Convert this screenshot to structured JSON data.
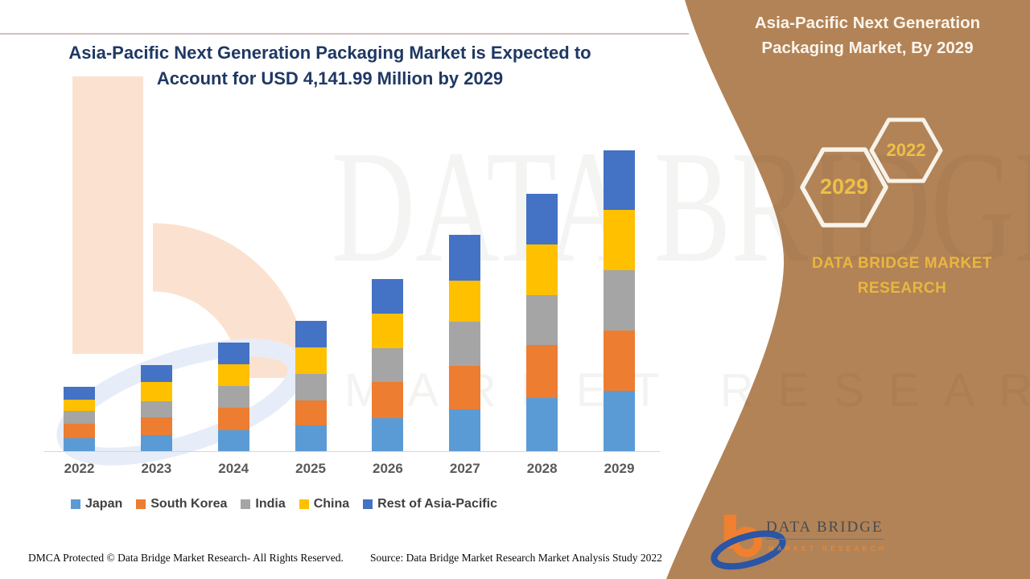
{
  "header": {
    "title_line1": "Asia-Pacific Next Generation Packaging Market is Expected to",
    "title_line2": "Account for USD 4,141.99 Million by 2029",
    "title_color": "#1f3864"
  },
  "sidebar": {
    "bg_color": "#b28357",
    "title": "Asia-Pacific Next Generation Packaging Market, By 2029",
    "hexagons": [
      {
        "label": "2029"
      },
      {
        "label": "2022"
      }
    ],
    "brand_text": "DATA BRIDGE MARKET RESEARCH",
    "accent_color": "#e9b640"
  },
  "watermark": {
    "name": "DATA BRIDGE",
    "tagline": "MARKET RESEARCH"
  },
  "chart_data": {
    "type": "bar",
    "stacked": true,
    "title": "Asia-Pacific Next Generation Packaging Market is Expected to Account for USD 4,141.99 Million by 2029",
    "unit": "USD Million",
    "categories": [
      "2022",
      "2023",
      "2024",
      "2025",
      "2026",
      "2027",
      "2028",
      "2029"
    ],
    "series": [
      {
        "name": "Japan",
        "color": "#5B9BD5",
        "values": [
          177,
          221,
          288,
          354,
          454,
          576,
          731,
          830
        ]
      },
      {
        "name": "South Korea",
        "color": "#ED7D31",
        "values": [
          199,
          244,
          310,
          343,
          498,
          598,
          731,
          830
        ]
      },
      {
        "name": "India",
        "color": "#A5A5A5",
        "values": [
          177,
          221,
          299,
          365,
          465,
          609,
          686,
          830
        ]
      },
      {
        "name": "China",
        "color": "#FFC000",
        "values": [
          155,
          266,
          299,
          365,
          476,
          565,
          698,
          830
        ]
      },
      {
        "name": "Rest of Asia-Pacific",
        "color": "#4472C4",
        "values": [
          177,
          233,
          299,
          365,
          476,
          631,
          698,
          822
        ]
      }
    ],
    "totals_estimated": [
      885,
      1185,
      1495,
      1792,
      2369,
      2979,
      3544,
      4142
    ],
    "annotation_2029_total": "USD 4,141.99 Million",
    "ylim": [
      0,
      4350
    ],
    "y_axis_visible": false,
    "gridlines": false,
    "legend_position": "bottom",
    "x_label_color": "#595959"
  },
  "logo": {
    "name": "DATA BRIDGE",
    "tagline": "MARKET RESEARCH"
  },
  "footer": {
    "dmca": "DMCA Protected © Data Bridge Market Research- All Rights Reserved.",
    "source": "Source: Data Bridge Market Research Market Analysis Study 2022"
  }
}
